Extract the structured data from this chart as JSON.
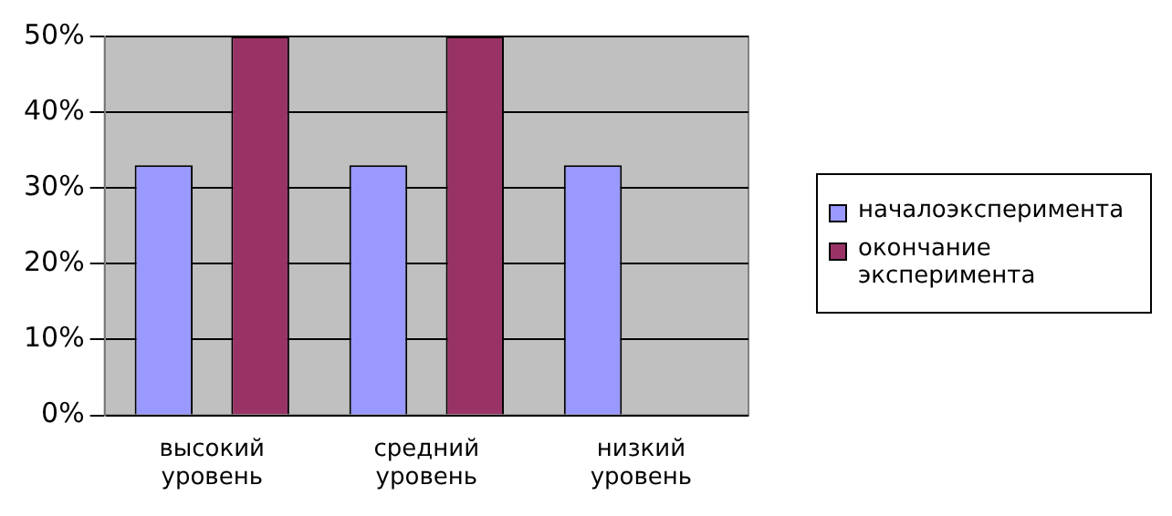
{
  "chart_data": {
    "type": "bar",
    "categories": [
      "высокий уровень",
      "средний уровень",
      "низкий уровень"
    ],
    "series": [
      {
        "name": "началоэксперимента",
        "color": "#9999ff",
        "values": [
          33,
          33,
          33
        ]
      },
      {
        "name": "окончание эксперимента",
        "color": "#993366",
        "values": [
          50,
          50,
          0
        ]
      }
    ],
    "ylim": [
      0,
      50
    ],
    "yticks": [
      {
        "value": 0,
        "label": "0%"
      },
      {
        "value": 10,
        "label": "10%"
      },
      {
        "value": 20,
        "label": "20%"
      },
      {
        "value": 30,
        "label": "30%"
      },
      {
        "value": 40,
        "label": "40%"
      },
      {
        "value": 50,
        "label": "50%"
      }
    ],
    "grid": "y",
    "legend": "right"
  }
}
